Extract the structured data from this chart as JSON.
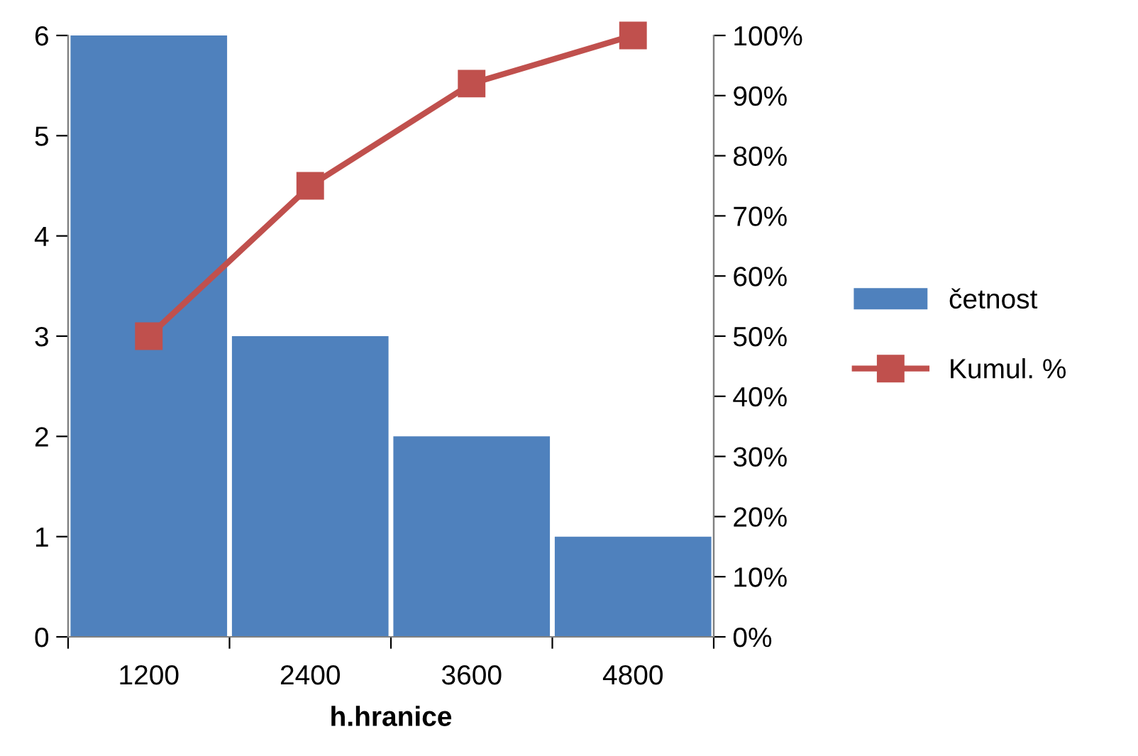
{
  "chart_data": {
    "type": "bar",
    "xlabel": "h.hranice",
    "categories": [
      "1200",
      "2400",
      "3600",
      "4800"
    ],
    "series": [
      {
        "name": "četnost",
        "color": "#4f81bd",
        "values": [
          6,
          3,
          2,
          1
        ]
      },
      {
        "name": "Kumul. %",
        "type": "line",
        "axis": "y2",
        "color": "#c0504d",
        "marker": "square",
        "values": [
          50,
          75,
          92,
          100
        ]
      }
    ],
    "ylim": [
      0,
      6
    ],
    "yticks": [
      0,
      1,
      2,
      3,
      4,
      5,
      6
    ],
    "y2lim": [
      0,
      100
    ],
    "y2ticks": [
      {
        "value": 0,
        "label": "0%"
      },
      {
        "value": 10,
        "label": "10%"
      },
      {
        "value": 20,
        "label": "20%"
      },
      {
        "value": 30,
        "label": "30%"
      },
      {
        "value": 40,
        "label": "40%"
      },
      {
        "value": 50,
        "label": "50%"
      },
      {
        "value": 60,
        "label": "60%"
      },
      {
        "value": 70,
        "label": "70%"
      },
      {
        "value": 80,
        "label": "80%"
      },
      {
        "value": 90,
        "label": "90%"
      },
      {
        "value": 100,
        "label": "100%"
      }
    ],
    "grid": false,
    "legend": "right"
  }
}
